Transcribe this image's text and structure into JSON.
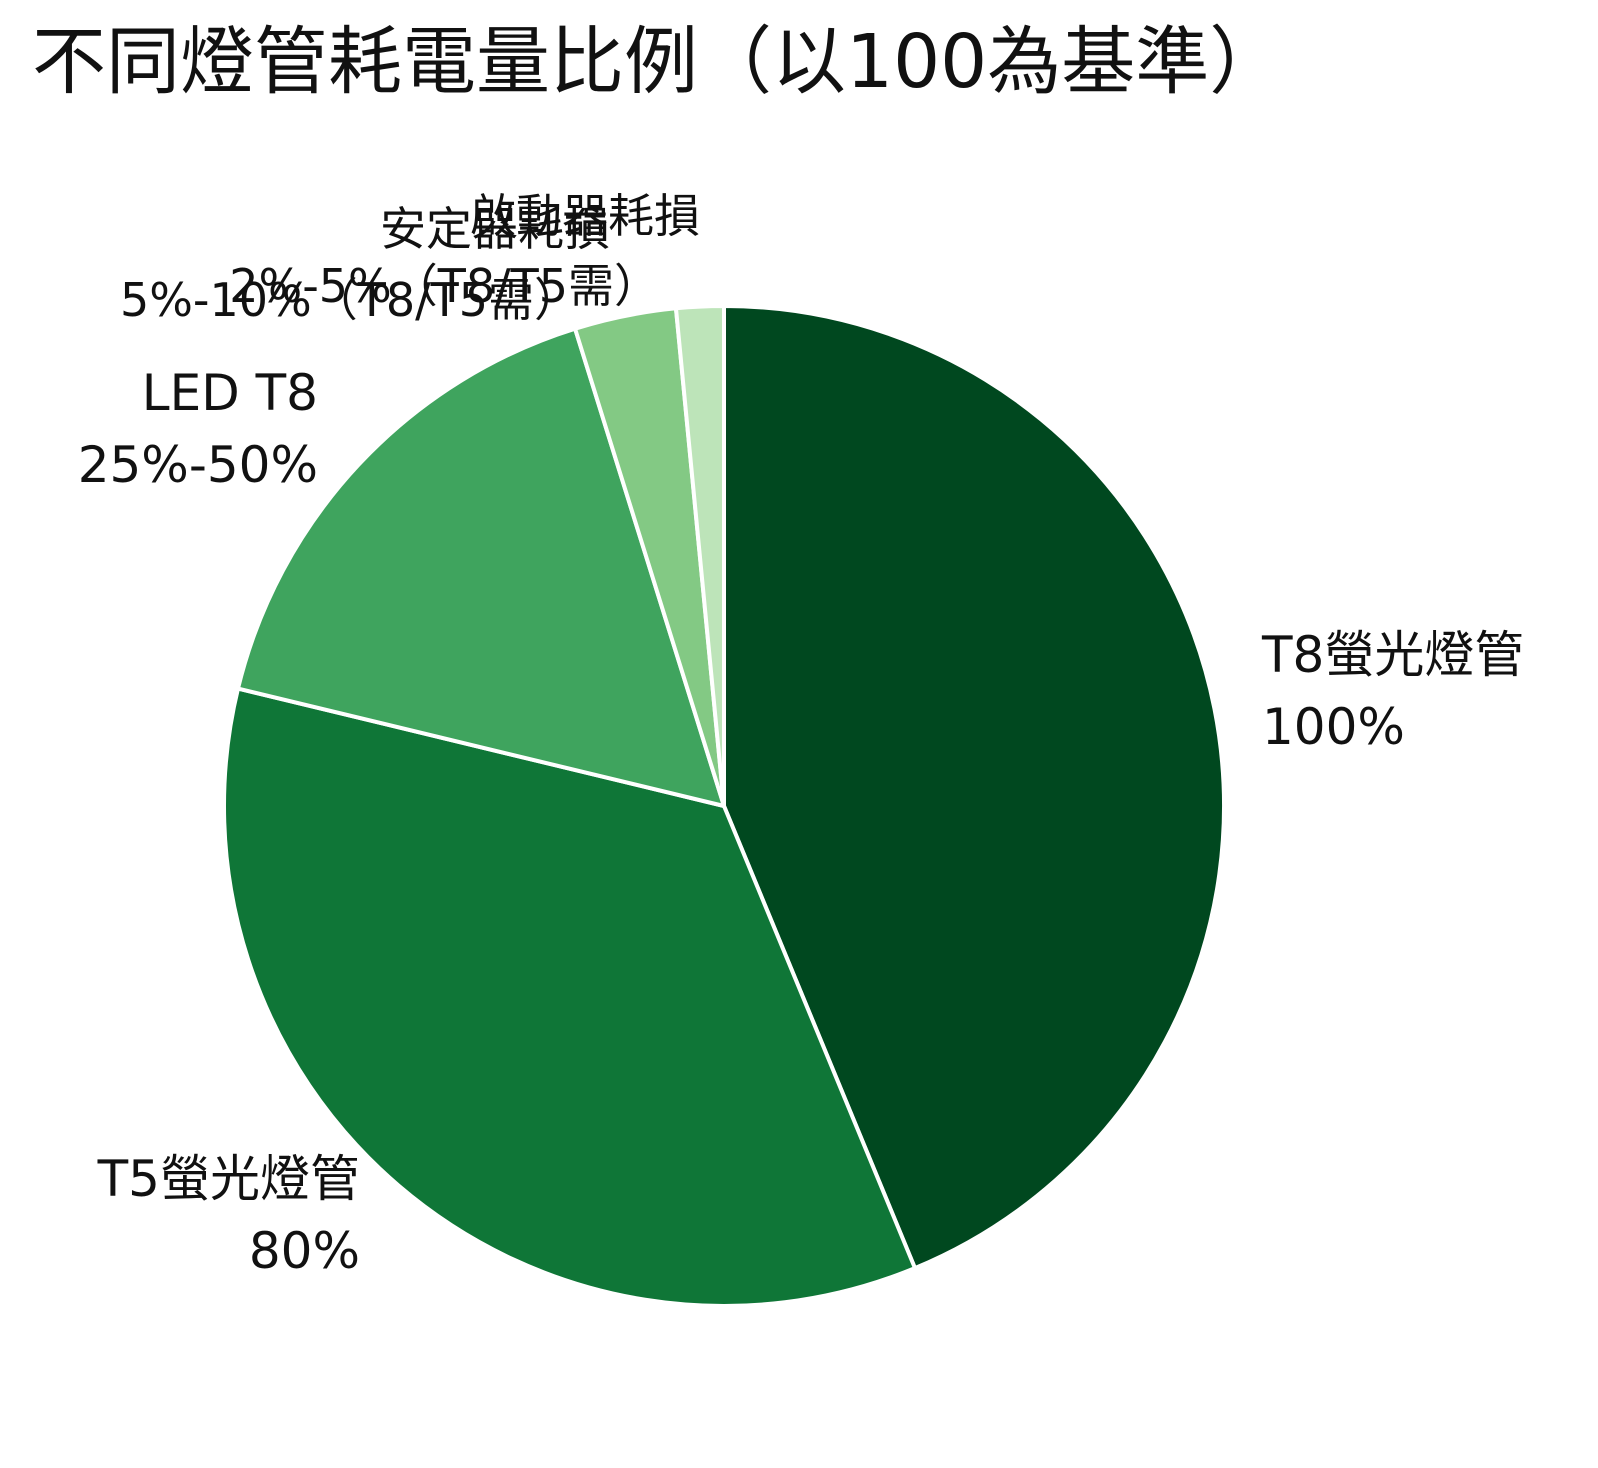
{
  "chart_data": {
    "type": "pie",
    "title": "不同燈管耗電量比例（以100為基準）",
    "slices": [
      {
        "name": "T8螢光燈管",
        "label_value": "100%",
        "value": 100,
        "color": "#00481f"
      },
      {
        "name": "T5螢光燈管",
        "label_value": "80%",
        "value": 80,
        "color": "#0f7637"
      },
      {
        "name": "LED T8",
        "label_value": "25%-50%",
        "value": 37.5,
        "color": "#3fa45e"
      },
      {
        "name": "安定器耗損",
        "label_value": "5%-10%（T8/T5需）",
        "value": 7.5,
        "color": "#83c984"
      },
      {
        "name": "啟動器耗損",
        "label_value": "2%-5%（T8/T5需）",
        "value": 3.5,
        "color": "#bde4b9"
      }
    ],
    "start_angle": "12 o'clock",
    "direction": "clockwise",
    "legend": "none",
    "slice_border_color": "#ffffff"
  }
}
